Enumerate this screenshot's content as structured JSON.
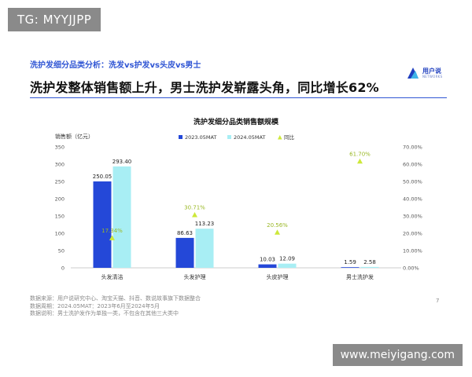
{
  "watermark_top": "TG: MYYJJPP",
  "watermark_bottom": "www.meiyigang.com",
  "slide": {
    "subtitle": "洗护发细分品类分析：洗发vs护发vs头皮vs男士",
    "headline": "洗护发整体销售额上升，男士洗护发崭露头角，同比增长62%",
    "logo_text": "用户说",
    "logo_sub": "NETWORKS",
    "page_number": "7",
    "sources": [
      "数据来源：用户说研究中心、淘宝天猫、抖音、数说故事旗下数据整合",
      "数据周期：2024.05MAT：2023年6月至2024年5月",
      "数据说明：男士洗护发作为单独一类，不包含在其他三大类中"
    ]
  },
  "colors": {
    "series_2023": "#2448d8",
    "series_2024": "#a8eef4",
    "yoy_marker": "#cde83a",
    "accent": "#2f55d4"
  },
  "chart_data": {
    "type": "bar",
    "title": "洗护发细分品类销售额规模",
    "ylabel": "销售额（亿元）",
    "categories": [
      "头发清洁",
      "头发护理",
      "头皮护理",
      "男士洗护发"
    ],
    "series": [
      {
        "name": "2023.05MAT",
        "values": [
          250.05,
          86.63,
          10.03,
          1.59
        ],
        "labels": [
          "250.05",
          "86.63",
          "10.03",
          "1.59"
        ]
      },
      {
        "name": "2024.05MAT",
        "values": [
          293.4,
          113.23,
          12.09,
          2.58
        ],
        "labels": [
          "293.40",
          "113.23",
          "12.09",
          "2.58"
        ]
      }
    ],
    "secondary_series": {
      "name": "同比",
      "type": "scatter",
      "values": [
        17.34,
        30.71,
        20.56,
        61.7
      ],
      "labels": [
        "17.34%",
        "30.71%",
        "20.56%",
        "61.70%"
      ]
    },
    "ylim": [
      0,
      350
    ],
    "yticks": [
      "0",
      "50",
      "100",
      "150",
      "200",
      "250",
      "300",
      "350"
    ],
    "y2lim": [
      0,
      70
    ],
    "y2ticks": [
      "0.00%",
      "10.00%",
      "20.00%",
      "30.00%",
      "40.00%",
      "50.00%",
      "60.00%",
      "70.00%"
    ],
    "legend": "top-center",
    "grid": false
  }
}
